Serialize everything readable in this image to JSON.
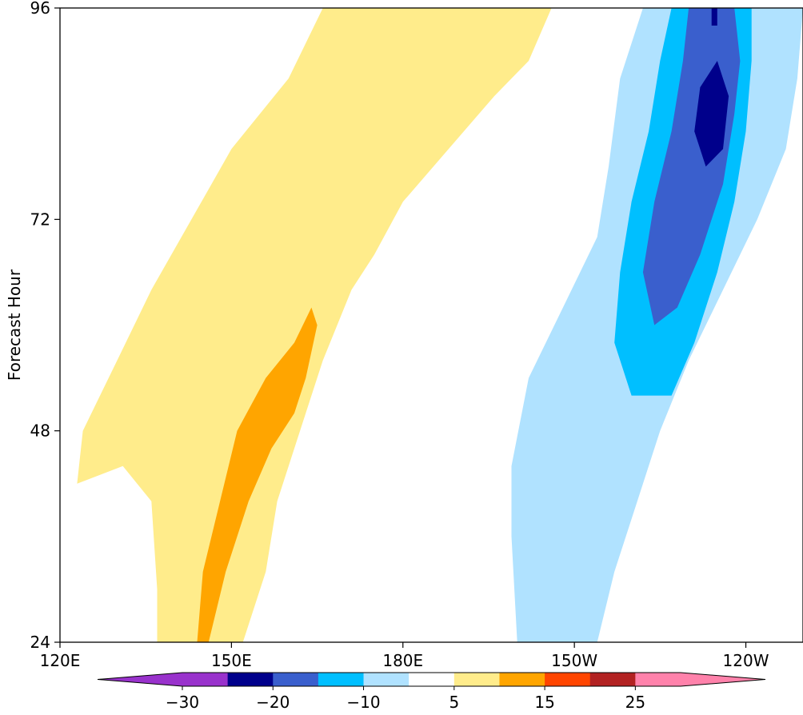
{
  "chart_data": {
    "type": "heatmap",
    "title": "",
    "xlabel": "",
    "ylabel": "Forecast Hour",
    "xlim_lon_east": [
      120,
      250
    ],
    "ylim": [
      24,
      96
    ],
    "x_ticks": [
      {
        "lon_east": 120,
        "label": "120E"
      },
      {
        "lon_east": 150,
        "label": "150E"
      },
      {
        "lon_east": 180,
        "label": "180E"
      },
      {
        "lon_east": 210,
        "label": "150W"
      },
      {
        "lon_east": 240,
        "label": "120W"
      }
    ],
    "y_ticks": [
      {
        "value": 24,
        "label": "24"
      },
      {
        "value": 48,
        "label": "48"
      },
      {
        "value": 72,
        "label": "72"
      },
      {
        "value": 96,
        "label": "96"
      }
    ],
    "grid": false,
    "colorbar": {
      "orientation": "horizontal",
      "location": "bottom",
      "extend": "both",
      "levels": [
        -30,
        -25,
        -20,
        -15,
        -10,
        -5,
        5,
        10,
        15,
        20,
        25,
        30
      ],
      "colors": [
        "#9932cc",
        "#00008b",
        "#3a5fcd",
        "#00bfff",
        "#b0e2ff",
        "#ffffff",
        "#ffec8b",
        "#ffa500",
        "#ff4500",
        "#b22222",
        "#ff82ab"
      ],
      "under_color": "#9932cc",
      "over_color": "#ff82ab",
      "tick_labels": [
        {
          "value": -30,
          "label": "−30"
        },
        {
          "value": -20,
          "label": "−20"
        },
        {
          "value": -10,
          "label": "−10"
        },
        {
          "value": 5,
          "label": "5"
        },
        {
          "value": 15,
          "label": "15"
        },
        {
          "value": 25,
          "label": "25"
        }
      ]
    },
    "regions": [
      {
        "name": "positive-band-5-10",
        "level": [
          5,
          10
        ],
        "color": "#ffec8b",
        "points": [
          [
            137,
            24
          ],
          [
            152,
            24
          ],
          [
            156,
            32
          ],
          [
            158,
            40
          ],
          [
            162,
            48
          ],
          [
            166,
            56
          ],
          [
            171,
            64
          ],
          [
            175,
            68
          ],
          [
            180,
            74
          ],
          [
            188,
            80
          ],
          [
            196,
            86
          ],
          [
            202,
            90
          ],
          [
            206,
            96
          ],
          [
            166,
            96
          ],
          [
            160,
            88
          ],
          [
            150,
            80
          ],
          [
            143,
            72
          ],
          [
            136,
            64
          ],
          [
            130,
            56
          ],
          [
            124,
            48
          ],
          [
            123,
            42
          ],
          [
            131,
            44
          ],
          [
            136,
            40
          ],
          [
            137,
            30
          ]
        ]
      },
      {
        "name": "positive-band-10-15",
        "level": [
          10,
          15
        ],
        "color": "#ffa500",
        "points": [
          [
            144,
            24
          ],
          [
            146,
            24
          ],
          [
            149,
            32
          ],
          [
            153,
            40
          ],
          [
            157,
            46
          ],
          [
            161,
            50
          ],
          [
            163,
            54
          ],
          [
            165,
            60
          ],
          [
            164,
            62
          ],
          [
            161,
            58
          ],
          [
            156,
            54
          ],
          [
            151,
            48
          ],
          [
            148,
            40
          ],
          [
            145,
            32
          ]
        ]
      },
      {
        "name": "negative-band-5-10",
        "level": [
          -10,
          -5
        ],
        "color": "#b0e2ff",
        "points": [
          [
            200,
            24
          ],
          [
            214,
            24
          ],
          [
            217,
            32
          ],
          [
            221,
            40
          ],
          [
            225,
            48
          ],
          [
            230,
            56
          ],
          [
            236,
            64
          ],
          [
            242,
            72
          ],
          [
            247,
            80
          ],
          [
            249,
            88
          ],
          [
            250,
            96
          ],
          [
            222,
            96
          ],
          [
            218,
            88
          ],
          [
            216,
            78
          ],
          [
            214,
            70
          ],
          [
            208,
            62
          ],
          [
            202,
            54
          ],
          [
            199,
            44
          ],
          [
            199,
            36
          ]
        ]
      },
      {
        "name": "negative-band-10-15",
        "level": [
          -15,
          -10
        ],
        "color": "#00bfff",
        "points": [
          [
            220,
            52
          ],
          [
            227,
            52
          ],
          [
            231,
            58
          ],
          [
            235,
            66
          ],
          [
            238,
            74
          ],
          [
            240,
            82
          ],
          [
            241,
            90
          ],
          [
            241,
            96
          ],
          [
            227,
            96
          ],
          [
            225,
            90
          ],
          [
            223,
            82
          ],
          [
            220,
            74
          ],
          [
            218,
            66
          ],
          [
            217,
            58
          ]
        ]
      },
      {
        "name": "negative-band-15-20",
        "level": [
          -20,
          -15
        ],
        "color": "#3a5fcd",
        "points": [
          [
            224,
            60
          ],
          [
            228,
            62
          ],
          [
            232,
            68
          ],
          [
            236,
            76
          ],
          [
            238,
            84
          ],
          [
            239,
            90
          ],
          [
            238,
            96
          ],
          [
            230,
            96
          ],
          [
            229,
            90
          ],
          [
            227,
            82
          ],
          [
            224,
            74
          ],
          [
            222,
            66
          ]
        ]
      },
      {
        "name": "negative-band-20-25",
        "level": [
          -25,
          -20
        ],
        "color": "#00008b",
        "points": [
          [
            233,
            78
          ],
          [
            236,
            80
          ],
          [
            237,
            86
          ],
          [
            235,
            90
          ],
          [
            232,
            87
          ],
          [
            231,
            82
          ]
        ]
      },
      {
        "name": "negative-cell-20-25",
        "level": [
          -25,
          -20
        ],
        "color": "#00008b",
        "points": [
          [
            234,
            94
          ],
          [
            235,
            94
          ],
          [
            235,
            96
          ],
          [
            234,
            96
          ]
        ]
      }
    ]
  }
}
